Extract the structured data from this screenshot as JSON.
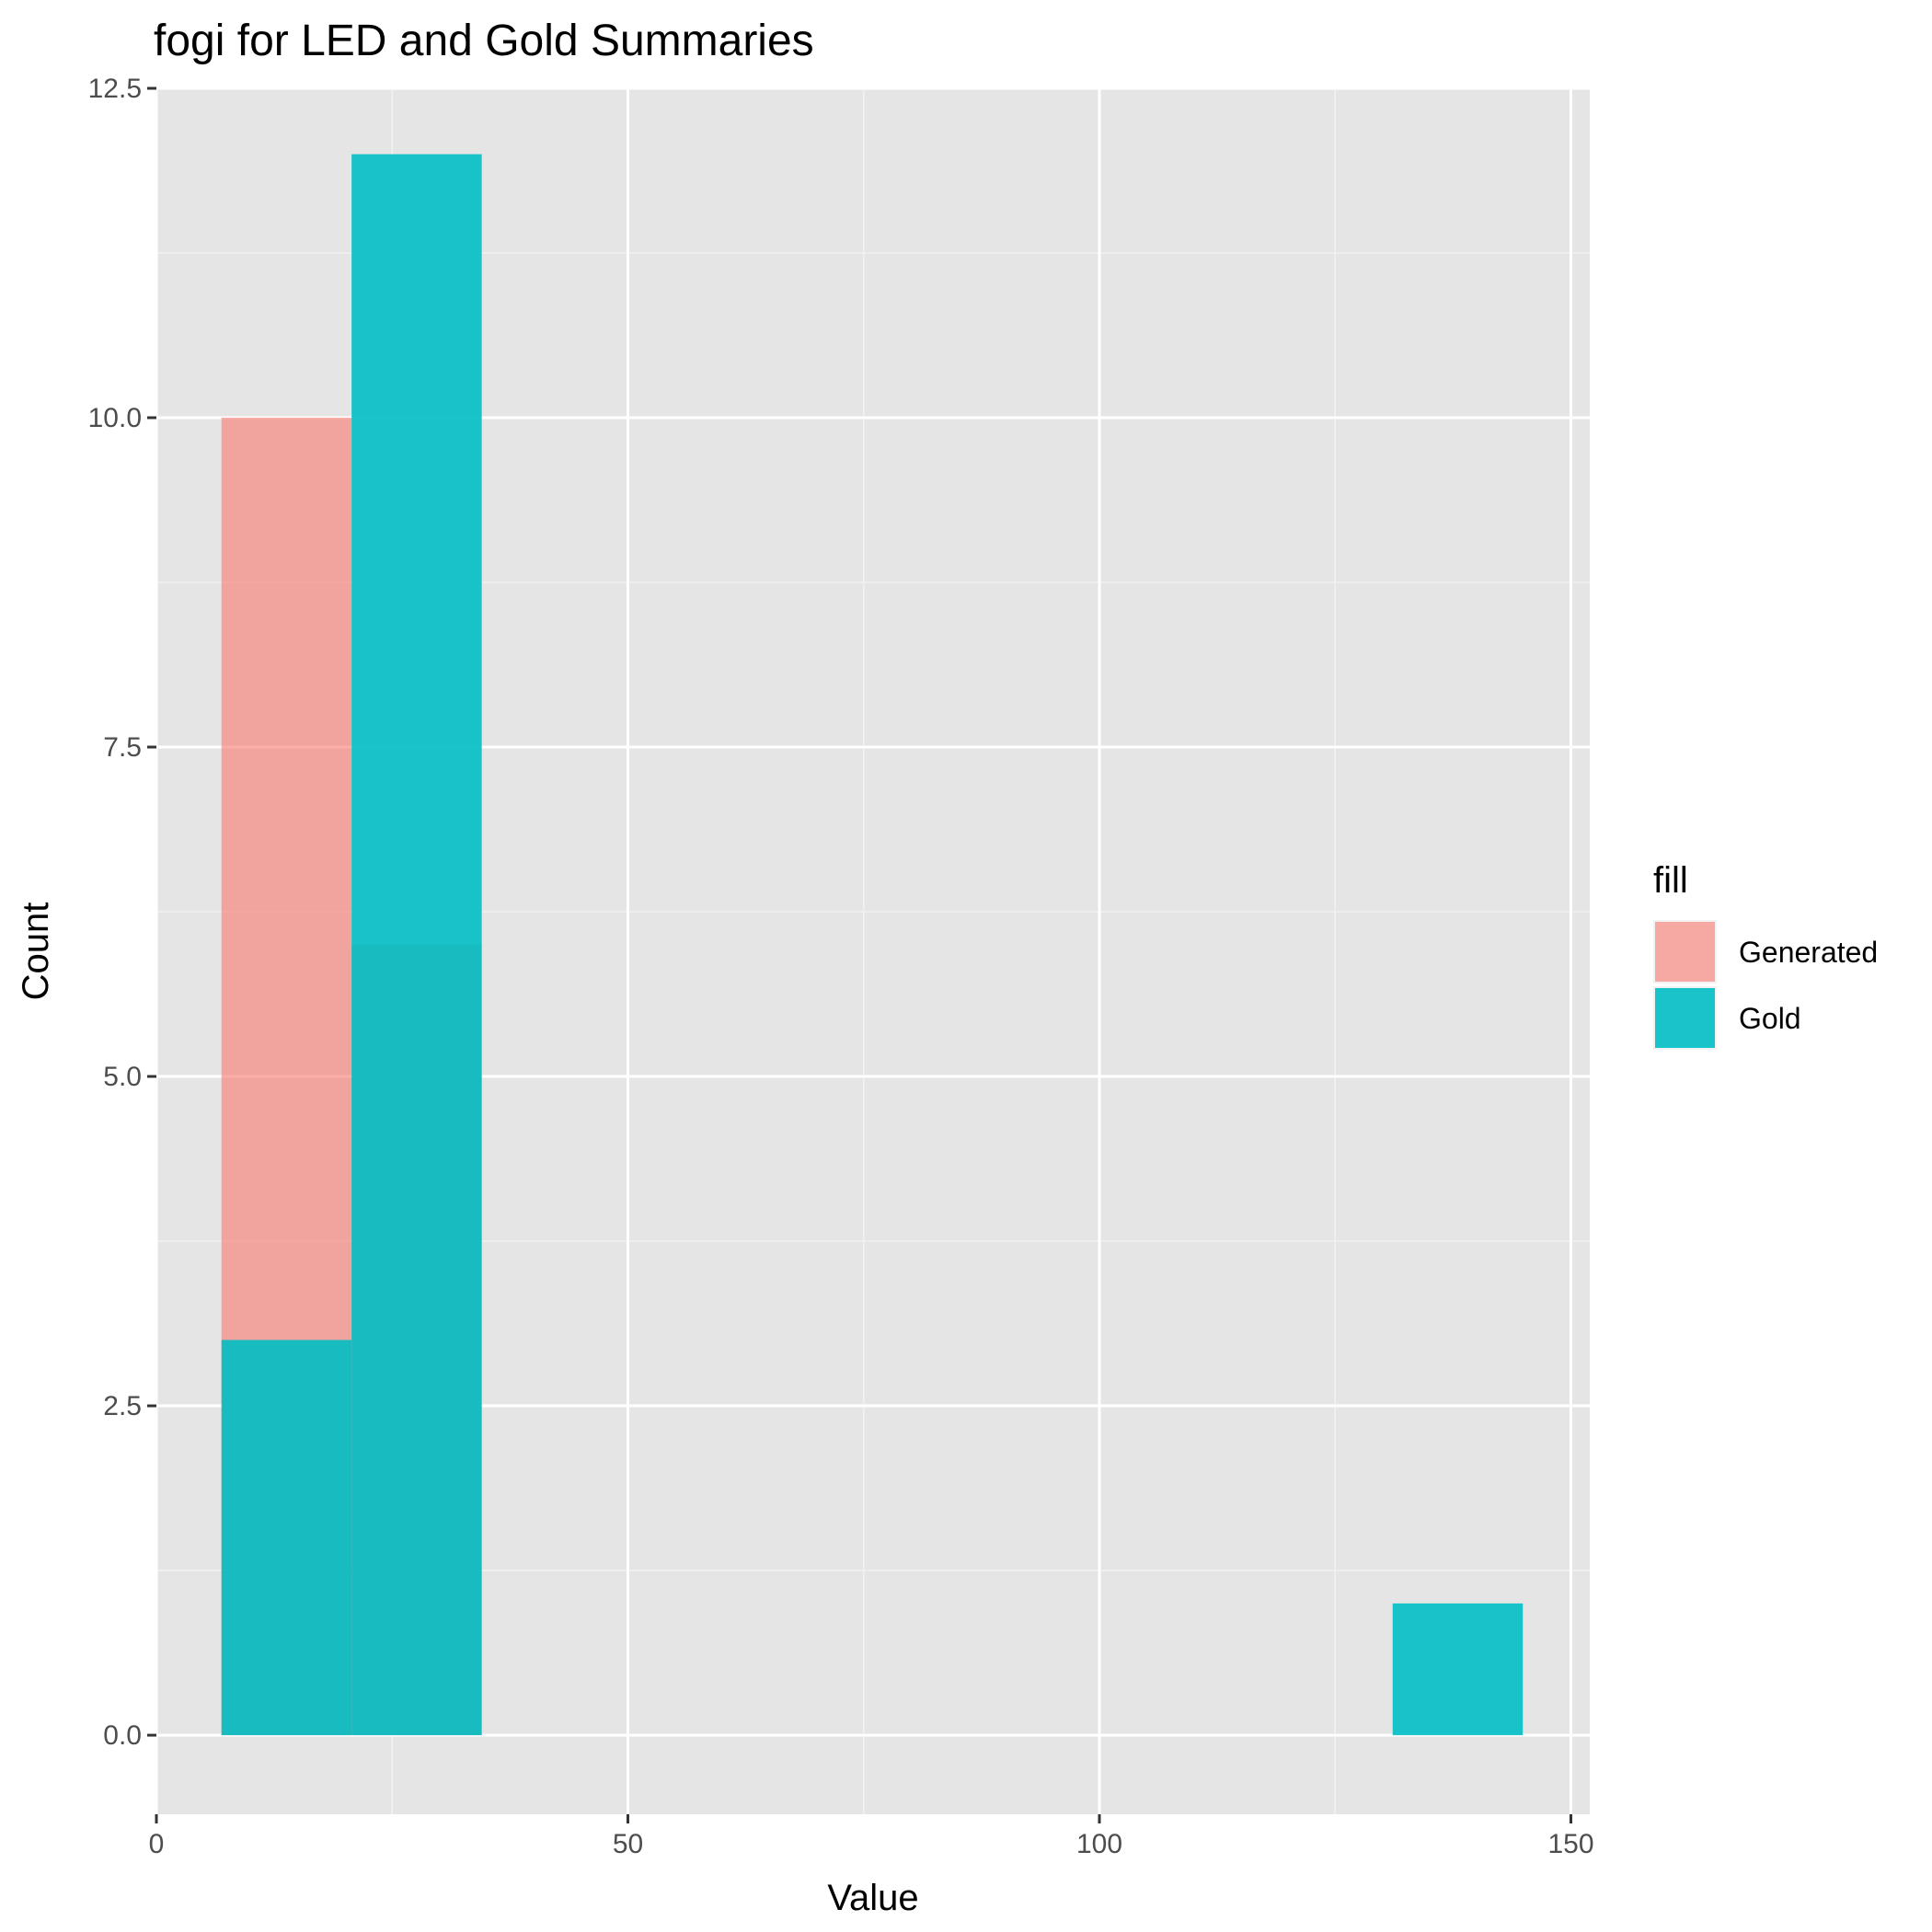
{
  "chart_data": {
    "type": "bar",
    "subtype": "overlapping-histogram",
    "title": "fogi for LED and Gold Summaries",
    "xlabel": "Value",
    "ylabel": "Count",
    "xlim": [
      0,
      152
    ],
    "ylim": [
      -0.6,
      12.5
    ],
    "x_ticks": [
      0,
      50,
      100,
      150
    ],
    "x_tick_labels": [
      "0",
      "50",
      "100",
      "150"
    ],
    "y_ticks": [
      0,
      2.5,
      5,
      7.5,
      10,
      12.5
    ],
    "y_tick_labels": [
      "0.0",
      "2.5",
      "5.0",
      "7.5",
      "10.0",
      "12.5"
    ],
    "grid": true,
    "legend": {
      "title": "fill",
      "position": "right"
    },
    "bin_width": 13.8,
    "series": [
      {
        "name": "Generated",
        "color": "#F8766D",
        "opacity": 0.6,
        "bins": [
          {
            "x0": 6.9,
            "x1": 20.7,
            "count": 10
          },
          {
            "x0": 20.7,
            "x1": 34.5,
            "count": 6
          }
        ]
      },
      {
        "name": "Gold",
        "color": "#00BFC4",
        "opacity": 0.9,
        "bins": [
          {
            "x0": 6.9,
            "x1": 20.7,
            "count": 3
          },
          {
            "x0": 20.7,
            "x1": 34.5,
            "count": 12
          },
          {
            "x0": 131.1,
            "x1": 144.9,
            "count": 1
          }
        ]
      }
    ],
    "overlap_color": "#8F8583"
  }
}
